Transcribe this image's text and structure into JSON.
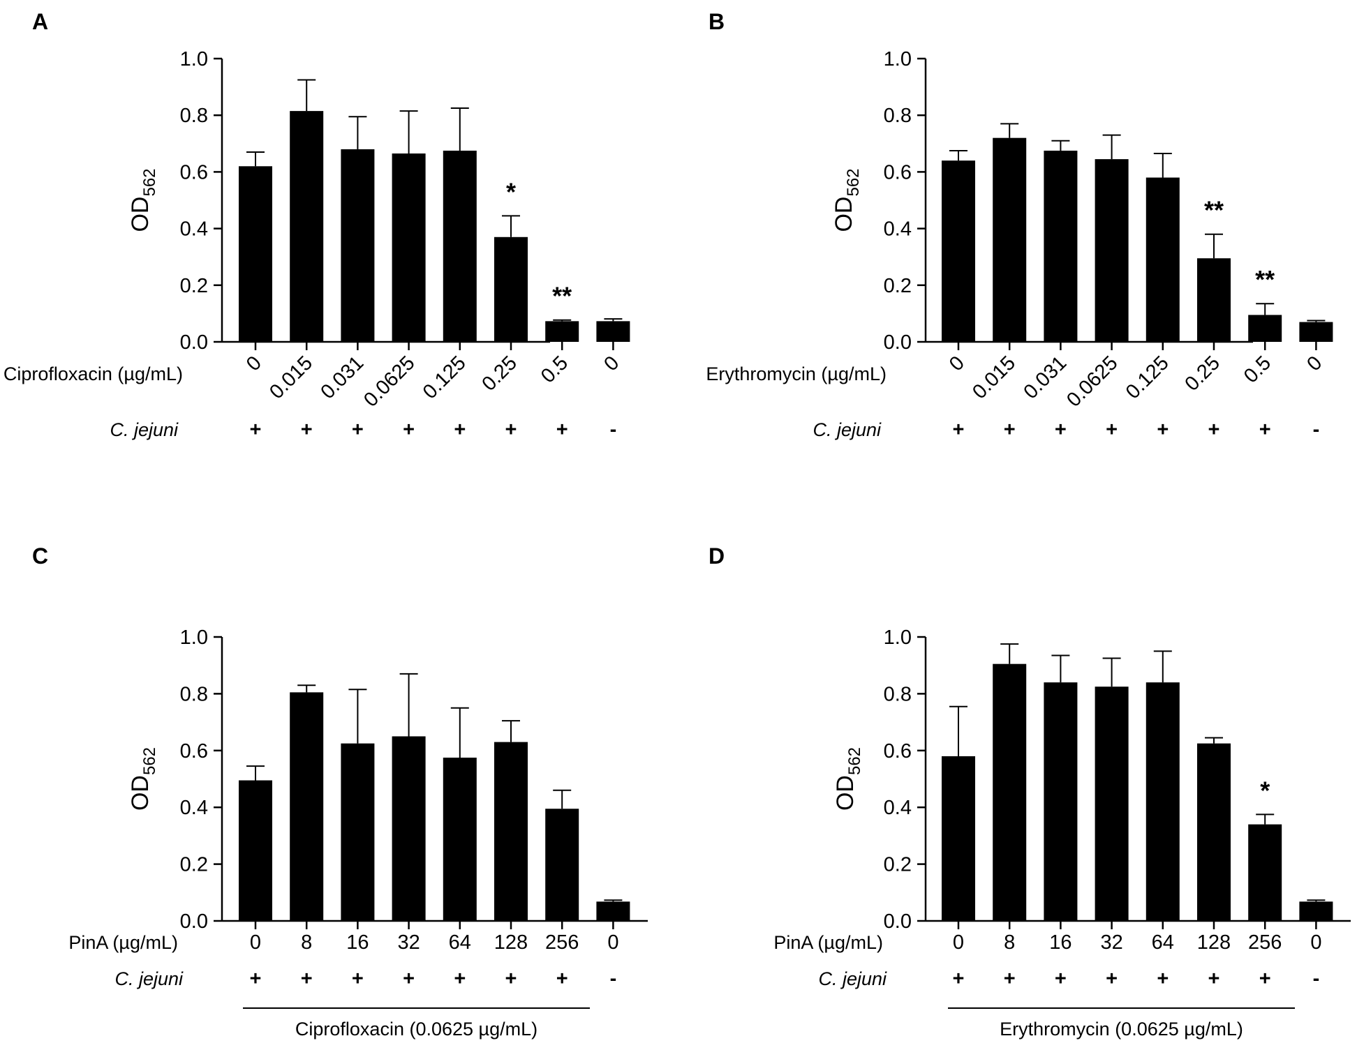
{
  "chart_data": [
    {
      "panel": "A",
      "type": "bar",
      "ylabel": "OD",
      "ylabel_sub": "562",
      "ylim": [
        0,
        1.0
      ],
      "yticks": [
        "0.0",
        "0.2",
        "0.4",
        "0.6",
        "0.8",
        "1.0"
      ],
      "x_row_label": "Ciprofloxacin (µg/mL)",
      "x_rotated": true,
      "categories": [
        "0",
        "0.015",
        "0.031",
        "0.0625",
        "0.125",
        "0.25",
        "0.5",
        "0"
      ],
      "values": [
        0.62,
        0.815,
        0.68,
        0.665,
        0.675,
        0.37,
        0.073,
        0.073
      ],
      "errors": [
        0.05,
        0.11,
        0.115,
        0.15,
        0.15,
        0.075,
        0.004,
        0.008
      ],
      "significance": [
        "",
        "",
        "",
        "",
        "",
        "*",
        "**",
        ""
      ],
      "strain_label": "C. jejuni",
      "strain_signs": [
        "+",
        "+",
        "+",
        "+",
        "+",
        "+",
        "+",
        "-"
      ],
      "group_label": ""
    },
    {
      "panel": "B",
      "type": "bar",
      "ylabel": "OD",
      "ylabel_sub": "562",
      "ylim": [
        0,
        1.0
      ],
      "yticks": [
        "0.0",
        "0.2",
        "0.4",
        "0.6",
        "0.8",
        "1.0"
      ],
      "x_row_label": "Erythromycin (µg/mL)",
      "x_rotated": true,
      "categories": [
        "0",
        "0.015",
        "0.031",
        "0.0625",
        "0.125",
        "0.25",
        "0.5",
        "0"
      ],
      "values": [
        0.64,
        0.72,
        0.675,
        0.645,
        0.58,
        0.295,
        0.095,
        0.07
      ],
      "errors": [
        0.035,
        0.05,
        0.035,
        0.085,
        0.085,
        0.085,
        0.04,
        0.005
      ],
      "significance": [
        "",
        "",
        "",
        "",
        "",
        "**",
        "**",
        ""
      ],
      "strain_label": "C. jejuni",
      "strain_signs": [
        "+",
        "+",
        "+",
        "+",
        "+",
        "+",
        "+",
        "-"
      ],
      "group_label": ""
    },
    {
      "panel": "C",
      "type": "bar",
      "ylabel": "OD",
      "ylabel_sub": "562",
      "ylim": [
        0,
        1.0
      ],
      "yticks": [
        "0.0",
        "0.2",
        "0.4",
        "0.6",
        "0.8",
        "1.0"
      ],
      "x_row_label": "PinA (µg/mL)",
      "x_rotated": false,
      "categories": [
        "0",
        "8",
        "16",
        "32",
        "64",
        "128",
        "256",
        "0"
      ],
      "values": [
        0.495,
        0.805,
        0.625,
        0.65,
        0.575,
        0.63,
        0.395,
        0.068
      ],
      "errors": [
        0.05,
        0.025,
        0.19,
        0.22,
        0.175,
        0.075,
        0.065,
        0.005
      ],
      "significance": [
        "",
        "",
        "",
        "",
        "",
        "",
        "",
        ""
      ],
      "strain_label": "C. jejuni",
      "strain_signs": [
        "+",
        "+",
        "+",
        "+",
        "+",
        "+",
        "+",
        "-"
      ],
      "group_label": "Ciprofloxacin (0.0625 µg/mL)"
    },
    {
      "panel": "D",
      "type": "bar",
      "ylabel": "OD",
      "ylabel_sub": "562",
      "ylim": [
        0,
        1.0
      ],
      "yticks": [
        "0.0",
        "0.2",
        "0.4",
        "0.6",
        "0.8",
        "1.0"
      ],
      "x_row_label": "PinA (µg/mL)",
      "x_rotated": false,
      "categories": [
        "0",
        "8",
        "16",
        "32",
        "64",
        "128",
        "256",
        "0"
      ],
      "values": [
        0.58,
        0.905,
        0.84,
        0.825,
        0.84,
        0.625,
        0.34,
        0.068
      ],
      "errors": [
        0.175,
        0.07,
        0.095,
        0.1,
        0.11,
        0.02,
        0.035,
        0.005
      ],
      "significance": [
        "",
        "",
        "",
        "",
        "",
        "",
        "*",
        ""
      ],
      "strain_label": "C. jejuni",
      "strain_signs": [
        "+",
        "+",
        "+",
        "+",
        "+",
        "+",
        "+",
        "-"
      ],
      "group_label": "Erythromycin (0.0625 µg/mL)"
    }
  ]
}
